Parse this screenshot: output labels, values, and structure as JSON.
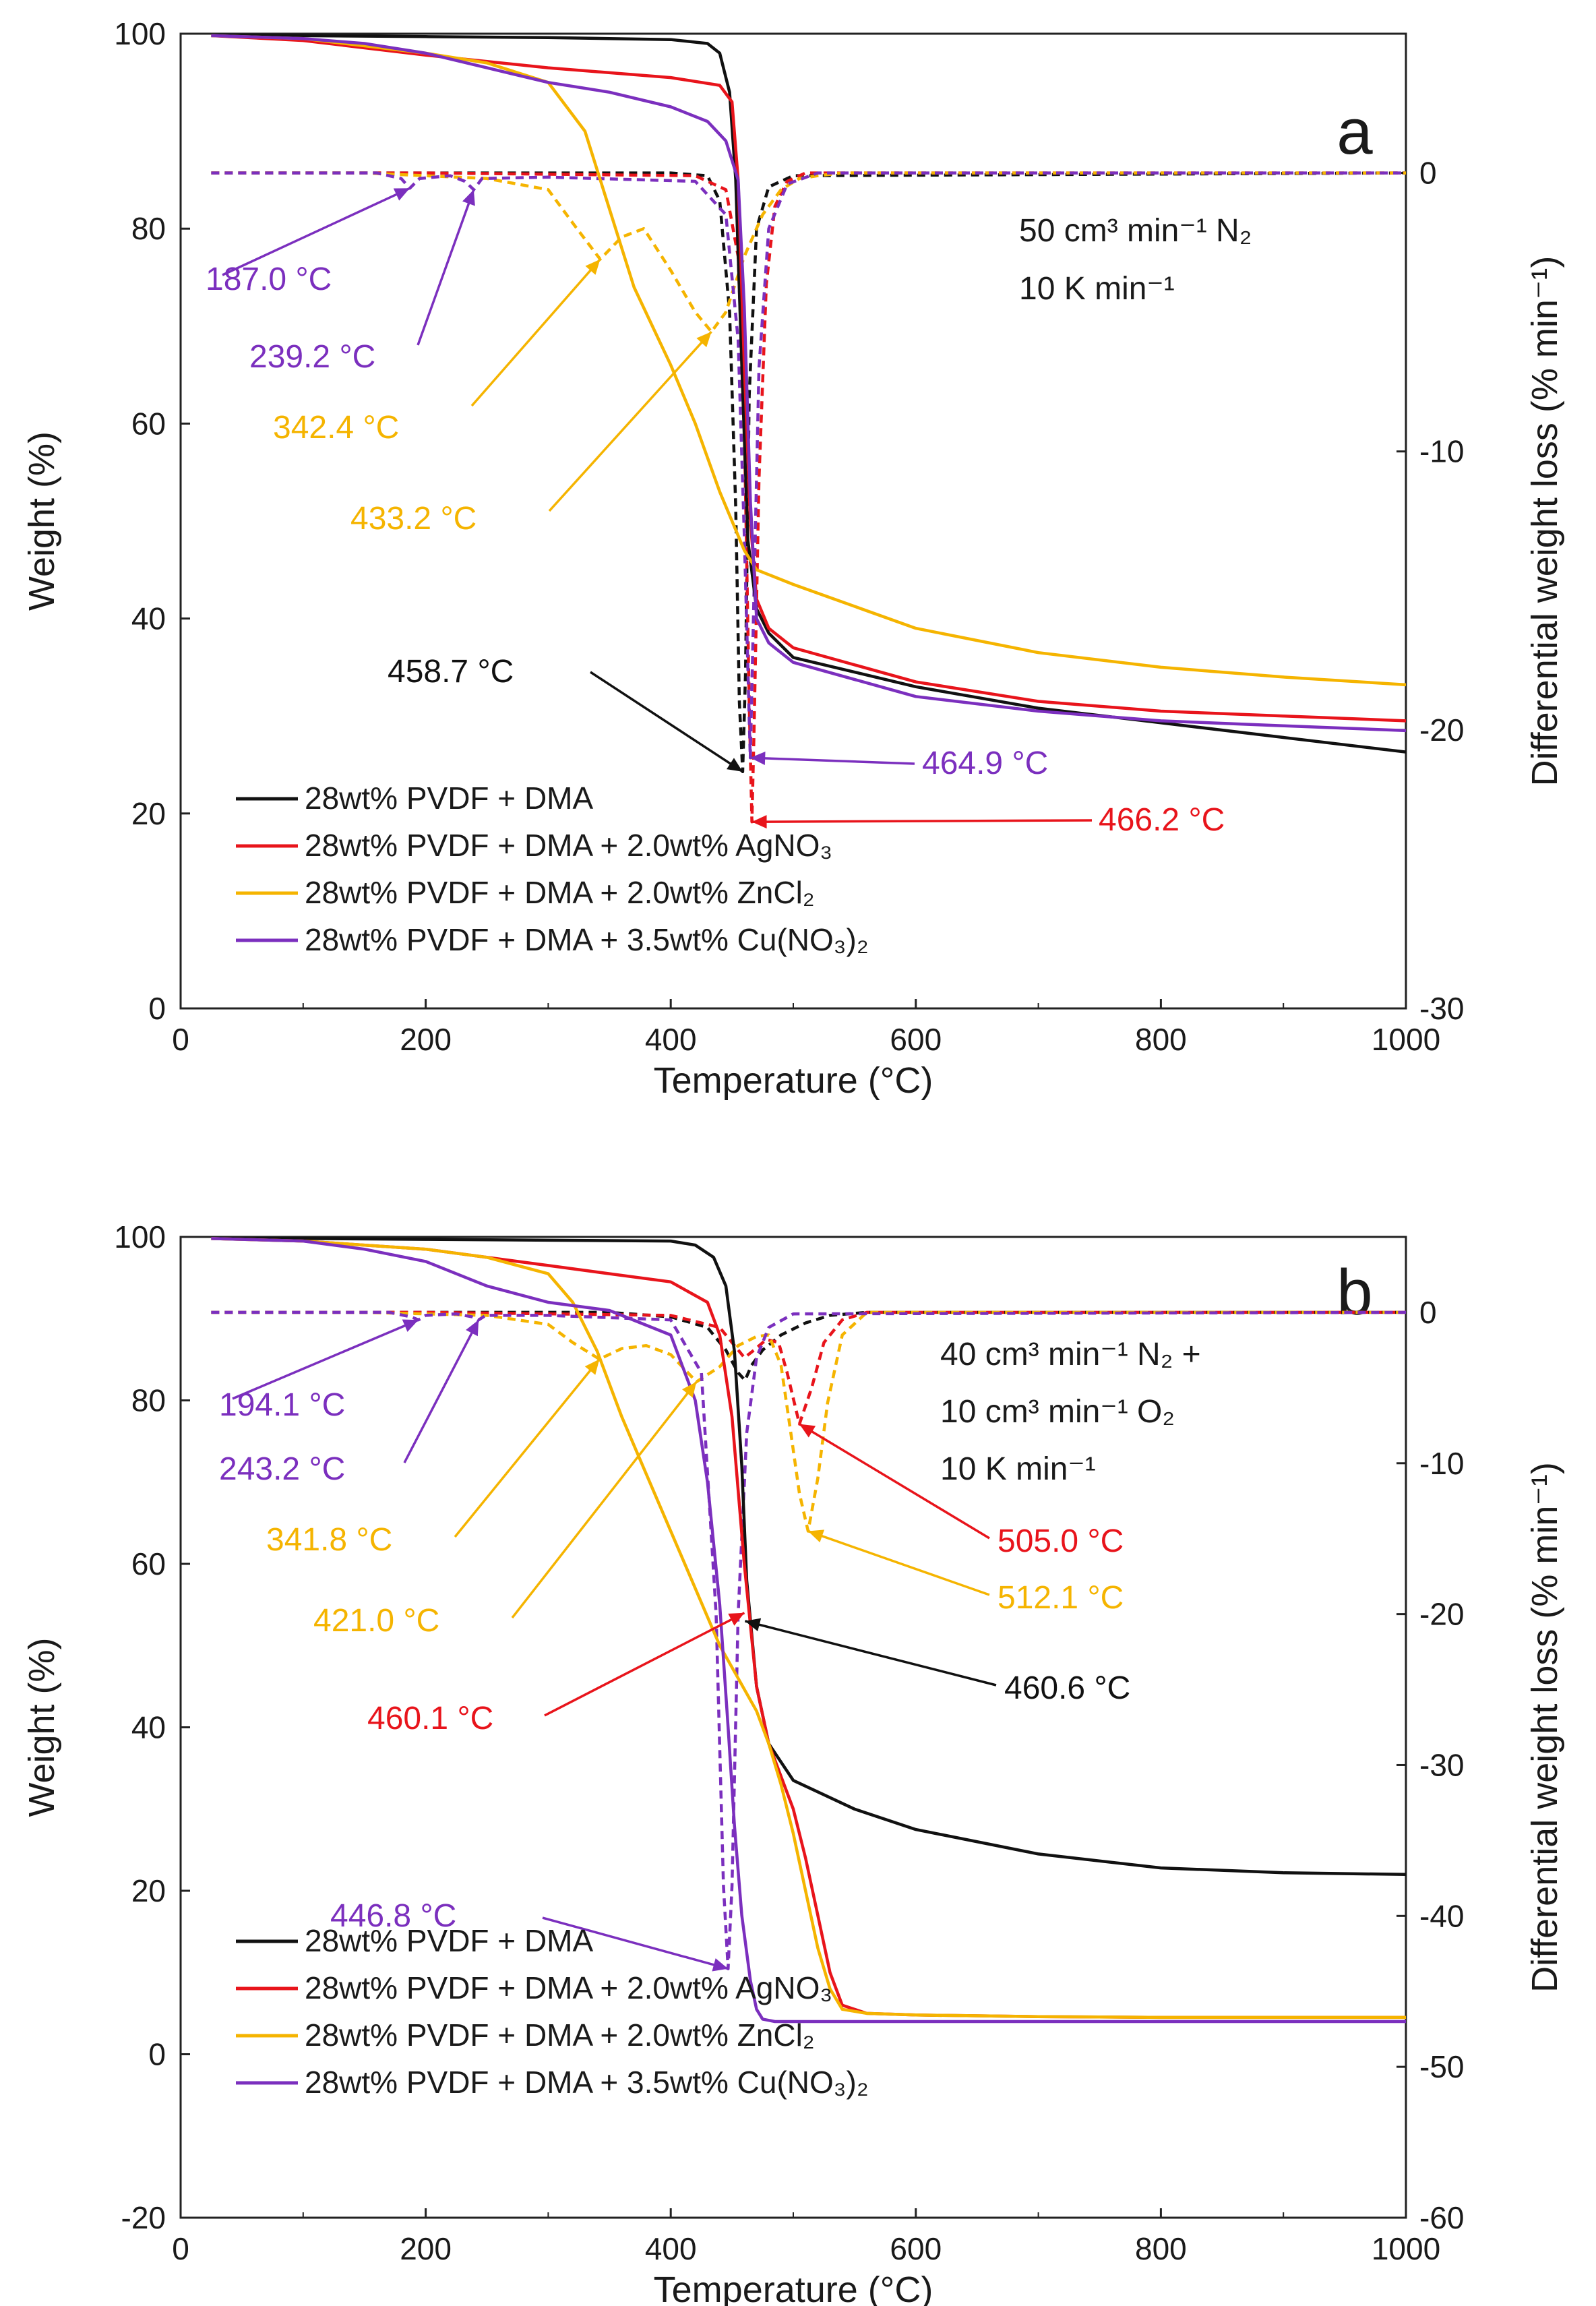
{
  "chart_data": [
    {
      "type": "line",
      "panel_label": "a",
      "conditions": [
        "50 cm³ min⁻¹ N₂",
        "10 K min⁻¹"
      ],
      "xlabel": "Temperature (°C)",
      "ylabel": "Weight (%)",
      "y2label": "Differential weight loss (% min⁻¹)",
      "xlim": [
        0,
        1000
      ],
      "ylim": [
        0,
        100
      ],
      "y2lim": [
        -30,
        5
      ],
      "x_ticks": [
        "0",
        "200",
        "400",
        "600",
        "800",
        "1000"
      ],
      "y_ticks": [
        "0",
        "20",
        "40",
        "60",
        "80",
        "100"
      ],
      "y2_ticks": [
        "-30",
        "-20",
        "-10",
        "0"
      ],
      "legend": [
        {
          "label": "28wt% PVDF + DMA",
          "color": "#111111"
        },
        {
          "label": "28wt% PVDF + DMA + 2.0wt% AgNO₃",
          "color": "#e8141b"
        },
        {
          "label": "28wt% PVDF + DMA + 2.0wt% ZnCl₂",
          "color": "#f5b400"
        },
        {
          "label": "28wt% PVDF + DMA + 3.5wt% Cu(NO₃)₂",
          "color": "#7b2fbe"
        }
      ],
      "weight_series": [
        {
          "name": "28wt% PVDF + DMA",
          "color": "#111111",
          "x": [
            25,
            100,
            200,
            300,
            400,
            430,
            440,
            448,
            453,
            458,
            463,
            470,
            480,
            500,
            600,
            700,
            800,
            900,
            1000
          ],
          "y": [
            99.8,
            99.8,
            99.7,
            99.6,
            99.4,
            99.0,
            98.0,
            94.0,
            85.0,
            66.0,
            48.0,
            41.0,
            38.5,
            36.0,
            33.0,
            30.8,
            29.3,
            27.8,
            26.3
          ]
        },
        {
          "name": "28wt% PVDF + DMA + 2.0wt% AgNO₃",
          "color": "#e8141b",
          "x": [
            25,
            100,
            200,
            300,
            400,
            440,
            450,
            455,
            460,
            465,
            470,
            480,
            500,
            600,
            700,
            800,
            900,
            1000
          ],
          "y": [
            99.8,
            99.3,
            97.8,
            96.5,
            95.5,
            94.7,
            93.0,
            85.0,
            66.0,
            50.0,
            42.0,
            39.0,
            37.0,
            33.5,
            31.5,
            30.5,
            30.0,
            29.5
          ]
        },
        {
          "name": "28wt% PVDF + DMA + 2.0wt% ZnCl₂",
          "color": "#f5b400",
          "x": [
            25,
            100,
            200,
            250,
            300,
            330,
            350,
            370,
            400,
            420,
            440,
            460,
            470,
            500,
            600,
            700,
            800,
            900,
            1000
          ],
          "y": [
            99.8,
            99.5,
            98.0,
            97.0,
            95.0,
            90.0,
            82.0,
            74.0,
            66.0,
            60.0,
            53.0,
            47.0,
            45.0,
            43.5,
            39.0,
            36.5,
            35.0,
            34.0,
            33.2
          ]
        },
        {
          "name": "28wt% PVDF + DMA + 3.5wt% Cu(NO₃)₂",
          "color": "#7b2fbe",
          "x": [
            25,
            100,
            150,
            200,
            250,
            300,
            350,
            400,
            430,
            445,
            455,
            460,
            465,
            470,
            480,
            500,
            600,
            700,
            800,
            900,
            1000
          ],
          "y": [
            99.8,
            99.5,
            99.0,
            98.0,
            96.5,
            95.0,
            94.0,
            92.5,
            91.0,
            89.0,
            85.0,
            72.0,
            52.0,
            40.0,
            37.5,
            35.5,
            32.0,
            30.5,
            29.5,
            29.0,
            28.5
          ]
        }
      ],
      "dtg_series": [
        {
          "name": "28wt% PVDF + DMA (DTG)",
          "color": "#111111",
          "x": [
            25,
            200,
            400,
            430,
            440,
            448,
            453,
            456,
            458.7,
            461,
            464,
            470,
            480,
            500,
            1000
          ],
          "y": [
            0,
            0,
            0,
            -0.1,
            -1.0,
            -5.0,
            -12.0,
            -19.0,
            -21.5,
            -18.0,
            -8.0,
            -2.0,
            -0.5,
            -0.1,
            0
          ]
        },
        {
          "name": "28wt% PVDF + DMA + 2.0wt% AgNO₃ (DTG)",
          "color": "#e8141b",
          "x": [
            25,
            200,
            420,
            445,
            455,
            460,
            464,
            466.2,
            468,
            472,
            478,
            485,
            495,
            510,
            1000
          ],
          "y": [
            0,
            0,
            -0.1,
            -0.6,
            -3.0,
            -9.0,
            -19.0,
            -23.3,
            -20.0,
            -11.0,
            -4.0,
            -1.2,
            -0.3,
            0,
            0
          ]
        },
        {
          "name": "28wt% PVDF + DMA + 2.0wt% ZnCl₂ (DTG)",
          "color": "#f5b400",
          "x": [
            25,
            150,
            250,
            300,
            320,
            342.4,
            360,
            378,
            400,
            420,
            433.2,
            445,
            460,
            475,
            490,
            505,
            520,
            540,
            1000
          ],
          "y": [
            0,
            0,
            -0.2,
            -0.6,
            -1.8,
            -3.1,
            -2.3,
            -2.0,
            -3.5,
            -5.0,
            -5.7,
            -5.0,
            -3.0,
            -1.5,
            -0.6,
            -0.2,
            -0.1,
            0,
            0
          ]
        },
        {
          "name": "28wt% PVDF + DMA + 3.5wt% Cu(NO₃)₂ (DTG)",
          "color": "#7b2fbe",
          "x": [
            25,
            160,
            180,
            187,
            195,
            220,
            232,
            239.2,
            246,
            300,
            420,
            445,
            455,
            460,
            464.9,
            468,
            472,
            480,
            495,
            520,
            1000
          ],
          "y": [
            0,
            0,
            -0.2,
            -0.55,
            -0.2,
            -0.1,
            -0.3,
            -0.6,
            -0.2,
            -0.15,
            -0.3,
            -1.5,
            -6.0,
            -13.0,
            -21.0,
            -15.0,
            -7.0,
            -2.0,
            -0.4,
            0,
            0
          ]
        }
      ],
      "annotations": [
        {
          "text": "187.0 °C",
          "color": "#7b2fbe",
          "target_x": 187.0,
          "target_y2": -0.55
        },
        {
          "text": "239.2 °C",
          "color": "#7b2fbe",
          "target_x": 239.2,
          "target_y2": -0.6
        },
        {
          "text": "342.4 °C",
          "color": "#f5b400",
          "target_x": 342.4,
          "target_y2": -3.1
        },
        {
          "text": "433.2 °C",
          "color": "#f5b400",
          "target_x": 433.2,
          "target_y2": -5.7
        },
        {
          "text": "458.7 °C",
          "color": "#111111",
          "target_x": 458.7,
          "target_y2": -21.5
        },
        {
          "text": "464.9 °C",
          "color": "#7b2fbe",
          "target_x": 464.9,
          "target_y2": -21.0
        },
        {
          "text": "466.2 °C",
          "color": "#e8141b",
          "target_x": 466.2,
          "target_y2": -23.3
        }
      ]
    },
    {
      "type": "line",
      "panel_label": "b",
      "conditions": [
        "40 cm³ min⁻¹ N₂ +",
        "10 cm³ min⁻¹ O₂",
        "10 K min⁻¹"
      ],
      "xlabel": "Temperature (°C)",
      "ylabel": "Weight (%)",
      "y2label": "Differential weight loss (% min⁻¹)",
      "xlim": [
        0,
        1000
      ],
      "ylim": [
        -20,
        100
      ],
      "y2lim": [
        -60,
        5
      ],
      "x_ticks": [
        "0",
        "200",
        "400",
        "600",
        "800",
        "1000"
      ],
      "y_ticks": [
        "-20",
        "0",
        "20",
        "40",
        "60",
        "80",
        "100"
      ],
      "y2_ticks": [
        "-60",
        "-50",
        "-40",
        "-30",
        "-20",
        "-10",
        "0"
      ],
      "legend": [
        {
          "label": "28wt% PVDF + DMA",
          "color": "#111111"
        },
        {
          "label": "28wt% PVDF + DMA + 2.0wt% AgNO₃",
          "color": "#e8141b"
        },
        {
          "label": "28wt% PVDF + DMA + 2.0wt% ZnCl₂",
          "color": "#f5b400"
        },
        {
          "label": "28wt% PVDF + DMA + 3.5wt% Cu(NO₃)₂",
          "color": "#7b2fbe"
        }
      ],
      "weight_series": [
        {
          "name": "28wt% PVDF + DMA",
          "color": "#111111",
          "x": [
            25,
            100,
            200,
            300,
            400,
            420,
            435,
            445,
            452,
            458,
            462,
            470,
            480,
            500,
            550,
            600,
            700,
            800,
            900,
            1000
          ],
          "y": [
            99.8,
            99.8,
            99.7,
            99.6,
            99.5,
            99.0,
            97.5,
            94.0,
            86.0,
            72.0,
            58.0,
            45.0,
            38.0,
            33.5,
            30.0,
            27.5,
            24.5,
            22.8,
            22.2,
            22.0
          ]
        },
        {
          "name": "28wt% PVDF + DMA + 2.0wt% AgNO₃",
          "color": "#e8141b",
          "x": [
            25,
            100,
            200,
            300,
            350,
            400,
            430,
            440,
            450,
            460,
            470,
            480,
            490,
            500,
            510,
            520,
            530,
            540,
            560,
            600,
            700,
            800,
            900,
            1000
          ],
          "y": [
            99.8,
            99.5,
            98.5,
            96.5,
            95.5,
            94.5,
            92.0,
            88.0,
            78.0,
            60.0,
            45.0,
            38.0,
            34.0,
            30.0,
            24.0,
            17.0,
            10.0,
            6.0,
            5.0,
            4.8,
            4.6,
            4.5,
            4.5,
            4.5
          ]
        },
        {
          "name": "28wt% PVDF + DMA + 2.0wt% ZnCl₂",
          "color": "#f5b400",
          "x": [
            25,
            100,
            200,
            250,
            300,
            320,
            340,
            360,
            380,
            400,
            420,
            440,
            455,
            470,
            480,
            490,
            500,
            510,
            520,
            530,
            540,
            560,
            600,
            700,
            800,
            900,
            1000
          ],
          "y": [
            99.8,
            99.5,
            98.5,
            97.5,
            95.5,
            92.0,
            86.0,
            78.0,
            71.0,
            64.0,
            57.0,
            50.0,
            46.0,
            42.0,
            38.0,
            33.0,
            27.0,
            20.0,
            13.0,
            8.0,
            5.5,
            5.0,
            4.8,
            4.6,
            4.5,
            4.5,
            4.5
          ]
        },
        {
          "name": "28wt% PVDF + DMA + 3.5wt% Cu(NO₃)₂",
          "color": "#7b2fbe",
          "x": [
            25,
            100,
            150,
            200,
            250,
            300,
            350,
            400,
            420,
            430,
            440,
            446.8,
            452,
            458,
            465,
            470,
            475,
            485,
            500,
            600,
            700,
            800,
            900,
            1000
          ],
          "y": [
            99.8,
            99.5,
            98.5,
            97.0,
            94.0,
            92.0,
            91.0,
            88.0,
            80.0,
            70.0,
            55.0,
            40.0,
            28.0,
            17.0,
            9.0,
            5.5,
            4.3,
            4.0,
            4.0,
            4.0,
            4.0,
            4.0,
            4.0,
            4.0
          ]
        }
      ],
      "dtg_series": [
        {
          "name": "28wt% PVDF + DMA (DTG)",
          "color": "#111111",
          "x": [
            25,
            200,
            350,
            400,
            430,
            445,
            455,
            460.6,
            466,
            475,
            490,
            510,
            530,
            560,
            1000
          ],
          "y": [
            0,
            0,
            0,
            -0.3,
            -1.0,
            -2.5,
            -4.0,
            -4.5,
            -3.5,
            -2.5,
            -1.5,
            -0.7,
            -0.2,
            0,
            0
          ]
        },
        {
          "name": "28wt% PVDF + DMA + 2.0wt% AgNO₃ (DTG)",
          "color": "#e8141b",
          "x": [
            25,
            200,
            400,
            440,
            450,
            460.1,
            468,
            478,
            488,
            495,
            505.0,
            515,
            525,
            540,
            560,
            1000
          ],
          "y": [
            0,
            0,
            -0.2,
            -1.0,
            -2.0,
            -3.0,
            -2.5,
            -1.8,
            -2.0,
            -4.0,
            -7.4,
            -5.0,
            -2.0,
            -0.5,
            0,
            0
          ]
        },
        {
          "name": "28wt% PVDF + DMA + 2.0wt% ZnCl₂ (DTG)",
          "color": "#f5b400",
          "x": [
            25,
            150,
            250,
            300,
            320,
            341.8,
            360,
            380,
            400,
            421.0,
            440,
            455,
            470,
            480,
            490,
            498,
            505,
            512.1,
            520,
            528,
            540,
            560,
            1000
          ],
          "y": [
            0,
            0,
            -0.2,
            -0.8,
            -2.0,
            -3.1,
            -2.4,
            -2.2,
            -2.8,
            -4.6,
            -3.6,
            -2.2,
            -1.6,
            -1.5,
            -3.5,
            -8.0,
            -12.0,
            -14.5,
            -11.0,
            -6.0,
            -1.5,
            0,
            0
          ]
        },
        {
          "name": "28wt% PVDF + DMA + 3.5wt% Cu(NO₃)₂ (DTG)",
          "color": "#7b2fbe",
          "x": [
            25,
            170,
            188,
            194.1,
            200,
            225,
            238,
            243.2,
            249,
            300,
            400,
            425,
            437,
            443,
            446.8,
            450,
            455,
            462,
            470,
            480,
            500,
            1000
          ],
          "y": [
            0,
            0,
            -0.3,
            -0.5,
            -0.2,
            -0.1,
            -0.3,
            -0.5,
            -0.2,
            -0.2,
            -0.5,
            -4.0,
            -20.0,
            -38.0,
            -43.5,
            -38.0,
            -20.0,
            -8.0,
            -3.0,
            -1.0,
            -0.1,
            0
          ]
        }
      ],
      "annotations": [
        {
          "text": "194.1 °C",
          "color": "#7b2fbe",
          "target_x": 194.1,
          "target_y2": -0.5
        },
        {
          "text": "243.2 °C",
          "color": "#7b2fbe",
          "target_x": 243.2,
          "target_y2": -0.5
        },
        {
          "text": "341.8 °C",
          "color": "#f5b400",
          "target_x": 341.8,
          "target_y2": -3.1
        },
        {
          "text": "421.0 °C",
          "color": "#f5b400",
          "target_x": 421.0,
          "target_y2": -4.6
        },
        {
          "text": "460.6 °C",
          "color": "#111111",
          "target_x": 460.6,
          "target_y": 53
        },
        {
          "text": "460.1 °C",
          "color": "#e8141b",
          "target_x": 460.1,
          "target_y": 54
        },
        {
          "text": "505.0 °C",
          "color": "#e8141b",
          "target_x": 505.0,
          "target_y2": -7.4
        },
        {
          "text": "512.1 °C",
          "color": "#f5b400",
          "target_x": 512.1,
          "target_y2": -14.5
        },
        {
          "text": "446.8 °C",
          "color": "#7b2fbe",
          "target_x": 446.8,
          "target_y2": -43.5
        }
      ]
    }
  ]
}
